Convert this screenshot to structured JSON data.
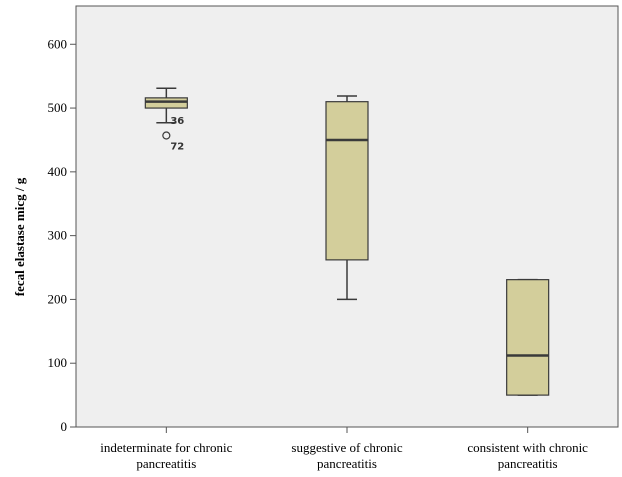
{
  "chart_data": {
    "type": "box",
    "ylabel": "fecal elastase micg / g",
    "xlabel": "",
    "ylim": [
      0,
      660
    ],
    "yticks": [
      0,
      100,
      200,
      300,
      400,
      500,
      600
    ],
    "grid": false,
    "categories": [
      [
        "indeterminate for chronic",
        "pancreatitis"
      ],
      [
        "suggestive of chronic",
        "pancreatitis"
      ],
      [
        "consistent with chronic",
        "pancreatitis"
      ]
    ],
    "boxes": [
      {
        "whisker_low": 477,
        "q1": 500,
        "median": 510,
        "q3": 516,
        "whisker_high": 531,
        "outliers": [
          {
            "value": 478,
            "label": "36"
          },
          {
            "value": 457,
            "label": "72"
          }
        ]
      },
      {
        "whisker_low": 200,
        "q1": 262,
        "median": 450,
        "q3": 510,
        "whisker_high": 519,
        "outliers": []
      },
      {
        "whisker_low": 50,
        "q1": 50,
        "median": 112,
        "q3": 231,
        "whisker_high": 231,
        "outliers": []
      }
    ],
    "colors": {
      "plot_bg": "#efefef",
      "box_fill": "#d3ce9b",
      "stroke": "#3a3a3a",
      "axis": "#555555"
    }
  }
}
